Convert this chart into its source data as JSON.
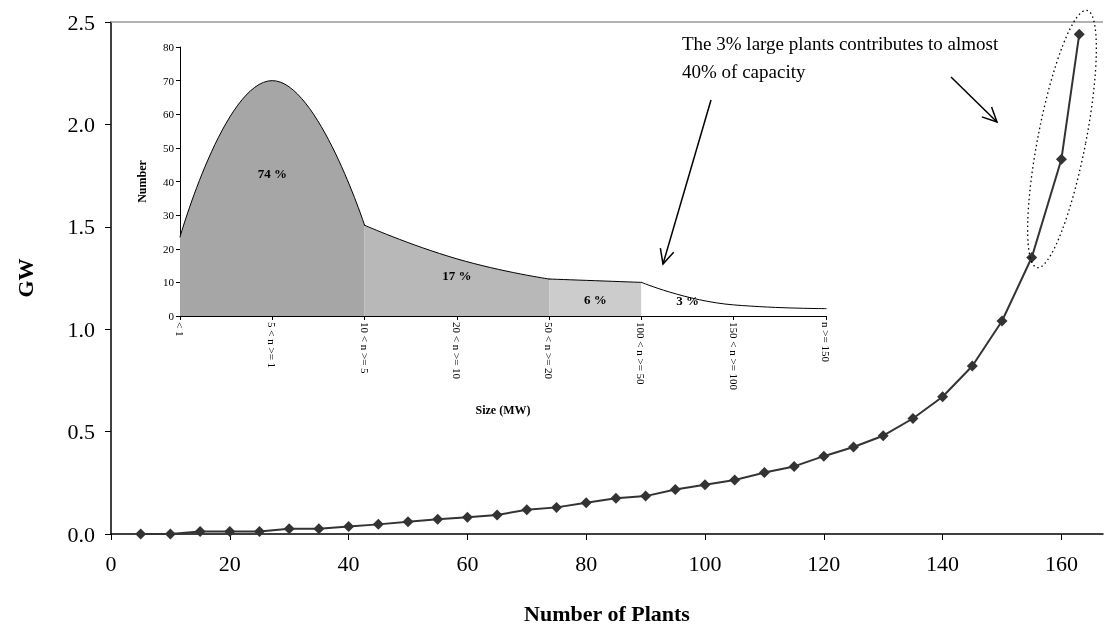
{
  "chart_data": [
    {
      "type": "line",
      "xlabel": "Number of Plants",
      "ylabel": "GW",
      "color": "#333333",
      "marker": "diamond",
      "x": [
        5,
        10,
        15,
        20,
        25,
        30,
        35,
        40,
        45,
        50,
        55,
        60,
        65,
        70,
        75,
        80,
        85,
        90,
        95,
        100,
        105,
        110,
        115,
        120,
        125,
        130,
        135,
        140,
        145,
        150,
        155,
        160,
        163
      ],
      "values": [
        0,
        0,
        0.012,
        0.012,
        0.012,
        0.026,
        0.026,
        0.037,
        0.047,
        0.06,
        0.072,
        0.082,
        0.093,
        0.118,
        0.13,
        0.153,
        0.175,
        0.185,
        0.217,
        0.24,
        0.264,
        0.3,
        0.33,
        0.38,
        0.425,
        0.48,
        0.564,
        0.67,
        0.82,
        1.04,
        1.35,
        1.83,
        2.44
      ],
      "xlim": [
        0,
        167
      ],
      "xticks": [
        0,
        20,
        40,
        60,
        80,
        100,
        120,
        140,
        160
      ],
      "ylim": [
        0,
        2.5
      ],
      "yticks": [
        {
          "value": 0,
          "label": "0.0"
        },
        {
          "value": 0.5,
          "label": "0.5"
        },
        {
          "value": 1,
          "label": "1.0"
        },
        {
          "value": 1.5,
          "label": "1.5"
        },
        {
          "value": 2,
          "label": "2.0"
        },
        {
          "value": 2.5,
          "label": "2.5"
        }
      ],
      "annotations": [
        "The 3% large plants contributes to almost 40% of capacity"
      ]
    },
    {
      "type": "area",
      "xlabel": "Size (MW)",
      "ylabel": "Number",
      "categories": [
        "< 1",
        "5 < n >= 1",
        "10 < n >= 5",
        "20 < n >= 10",
        "50 < n >= 20",
        "100 < n >= 50",
        "150 < n >= 100",
        "n >= 150"
      ],
      "series": [
        {
          "color": "#a6a6a6",
          "values": [
            23.5,
            70,
            27,
            null,
            null,
            null,
            null,
            null
          ]
        },
        {
          "color": "#b8b8b8",
          "values": [
            null,
            null,
            27,
            17,
            11,
            null,
            null,
            null
          ]
        },
        {
          "color": "#cccccc",
          "values": [
            null,
            null,
            null,
            null,
            11,
            10,
            null,
            null
          ]
        },
        {
          "color": "#ffffff",
          "values": [
            null,
            null,
            null,
            null,
            null,
            10,
            3.3,
            2.2
          ]
        }
      ],
      "ylim": [
        0,
        80
      ],
      "yticks": [
        0,
        10,
        20,
        30,
        40,
        50,
        60,
        70,
        80
      ],
      "annotations": [
        "74 %",
        "17 %",
        "6 %",
        "3 %"
      ]
    }
  ]
}
